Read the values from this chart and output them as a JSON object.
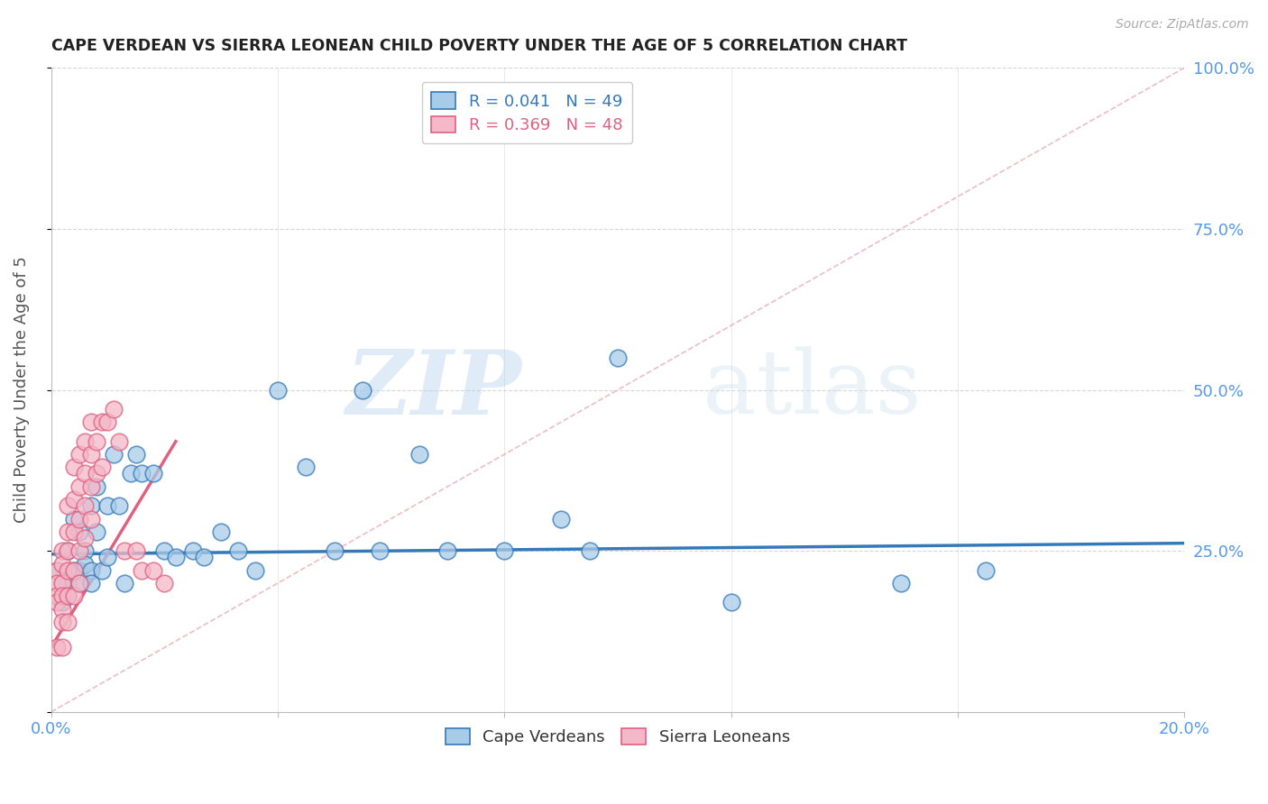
{
  "title": "CAPE VERDEAN VS SIERRA LEONEAN CHILD POVERTY UNDER THE AGE OF 5 CORRELATION CHART",
  "source": "Source: ZipAtlas.com",
  "ylabel": "Child Poverty Under the Age of 5",
  "xlim": [
    0.0,
    0.2
  ],
  "ylim": [
    0.0,
    1.0
  ],
  "blue_color": "#a8cce8",
  "pink_color": "#f4b8c8",
  "blue_line_color": "#3579b8",
  "pink_line_color": "#e06080",
  "axis_label_color": "#5599ee",
  "grid_color": "#cccccc",
  "watermark_zip": "ZIP",
  "watermark_atlas": "atlas",
  "cape_verdeans_x": [
    0.001,
    0.002,
    0.002,
    0.003,
    0.003,
    0.003,
    0.004,
    0.004,
    0.005,
    0.005,
    0.005,
    0.006,
    0.006,
    0.007,
    0.007,
    0.007,
    0.008,
    0.008,
    0.009,
    0.01,
    0.01,
    0.011,
    0.012,
    0.013,
    0.014,
    0.015,
    0.016,
    0.018,
    0.02,
    0.022,
    0.025,
    0.027,
    0.03,
    0.033,
    0.036,
    0.04,
    0.045,
    0.05,
    0.055,
    0.058,
    0.065,
    0.07,
    0.08,
    0.09,
    0.095,
    0.1,
    0.12,
    0.15,
    0.165
  ],
  "cape_verdeans_y": [
    0.22,
    0.2,
    0.17,
    0.25,
    0.2,
    0.18,
    0.3,
    0.22,
    0.28,
    0.22,
    0.2,
    0.25,
    0.23,
    0.32,
    0.22,
    0.2,
    0.35,
    0.28,
    0.22,
    0.32,
    0.24,
    0.4,
    0.32,
    0.2,
    0.37,
    0.4,
    0.37,
    0.37,
    0.25,
    0.24,
    0.25,
    0.24,
    0.28,
    0.25,
    0.22,
    0.5,
    0.38,
    0.25,
    0.5,
    0.25,
    0.4,
    0.25,
    0.25,
    0.3,
    0.25,
    0.55,
    0.17,
    0.2,
    0.22
  ],
  "sierra_leoneans_x": [
    0.001,
    0.001,
    0.001,
    0.001,
    0.001,
    0.002,
    0.002,
    0.002,
    0.002,
    0.002,
    0.002,
    0.002,
    0.003,
    0.003,
    0.003,
    0.003,
    0.003,
    0.003,
    0.004,
    0.004,
    0.004,
    0.004,
    0.004,
    0.005,
    0.005,
    0.005,
    0.005,
    0.005,
    0.006,
    0.006,
    0.006,
    0.006,
    0.007,
    0.007,
    0.007,
    0.007,
    0.008,
    0.008,
    0.009,
    0.009,
    0.01,
    0.011,
    0.012,
    0.013,
    0.015,
    0.016,
    0.018,
    0.02
  ],
  "sierra_leoneans_y": [
    0.22,
    0.2,
    0.18,
    0.17,
    0.1,
    0.25,
    0.23,
    0.2,
    0.18,
    0.16,
    0.14,
    0.1,
    0.32,
    0.28,
    0.25,
    0.22,
    0.18,
    0.14,
    0.38,
    0.33,
    0.28,
    0.22,
    0.18,
    0.4,
    0.35,
    0.3,
    0.25,
    0.2,
    0.42,
    0.37,
    0.32,
    0.27,
    0.45,
    0.4,
    0.35,
    0.3,
    0.42,
    0.37,
    0.45,
    0.38,
    0.45,
    0.47,
    0.42,
    0.25,
    0.25,
    0.22,
    0.22,
    0.2
  ],
  "cv_trend_x": [
    0.0,
    0.2
  ],
  "cv_trend_y": [
    0.245,
    0.262
  ],
  "sl_trend_x": [
    0.0,
    0.022
  ],
  "sl_trend_y": [
    0.1,
    0.42
  ],
  "ref_line_x": [
    0.0,
    0.2
  ],
  "ref_line_y": [
    0.0,
    1.0
  ]
}
